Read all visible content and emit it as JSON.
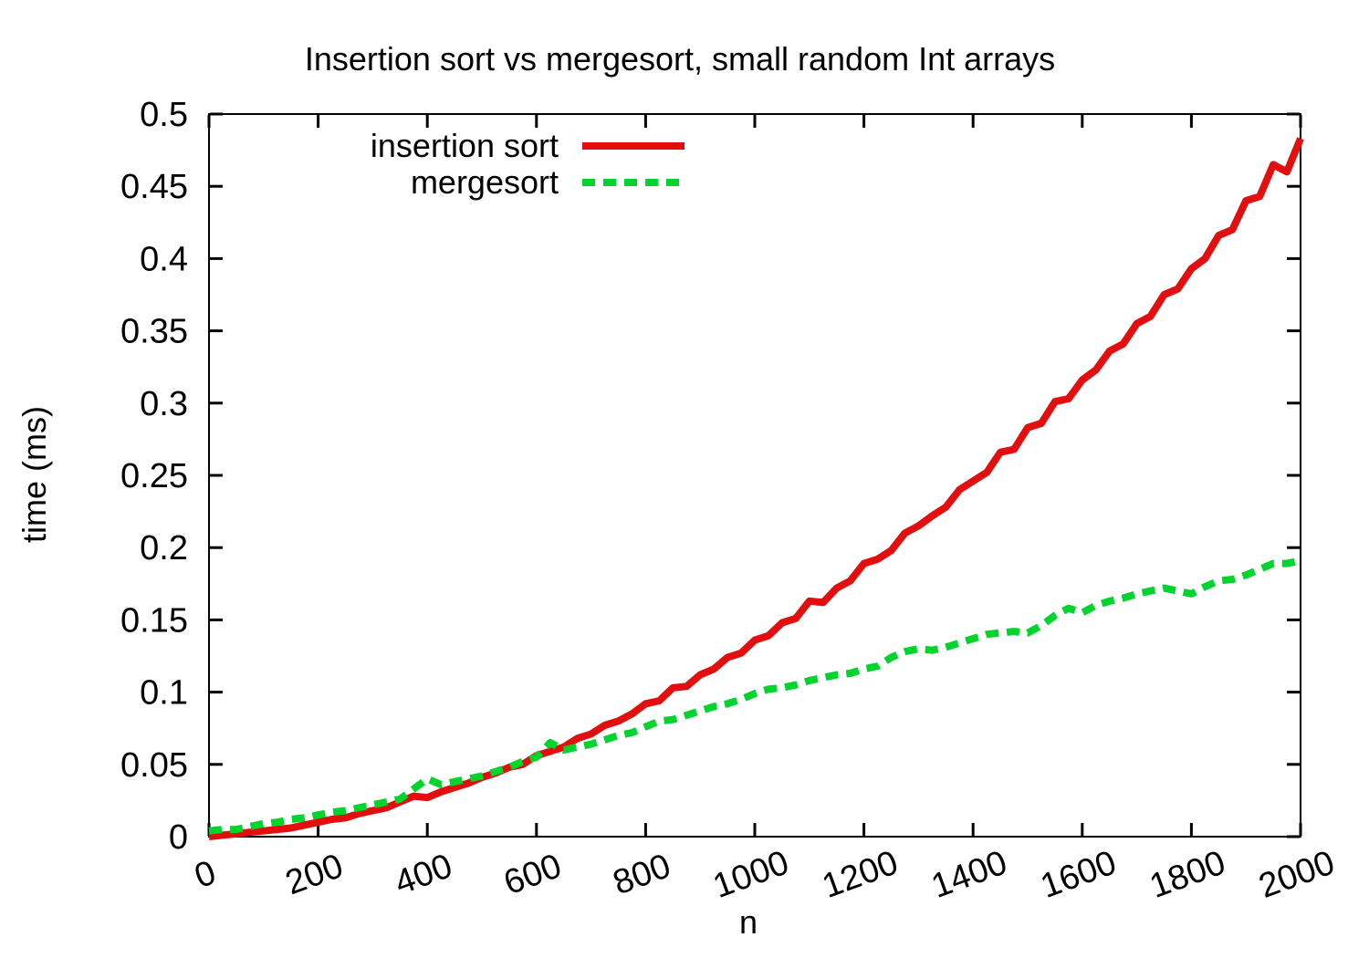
{
  "title": "Insertion sort vs mergesort, small random Int arrays",
  "colors": {
    "insertion_sort": "#e30e0e",
    "mergesort": "#00d42d",
    "axis": "#000000",
    "background": "#ffffff"
  },
  "chart_data": {
    "type": "line",
    "title": "Insertion sort vs mergesort, small random Int arrays",
    "xlabel": "n",
    "ylabel": "time (ms)",
    "xlim": [
      0,
      2000
    ],
    "ylim": [
      0,
      0.5
    ],
    "xticks": [
      0,
      200,
      400,
      600,
      800,
      1000,
      1200,
      1400,
      1600,
      1800,
      2000
    ],
    "yticks": [
      "0",
      "0.05",
      "0.1",
      "0.15",
      "0.2",
      "0.25",
      "0.3",
      "0.35",
      "0.4",
      "0.45",
      "0.5"
    ],
    "grid": false,
    "legend_position": "top-left-inside",
    "x": [
      0,
      25,
      50,
      75,
      100,
      125,
      150,
      175,
      200,
      225,
      250,
      275,
      300,
      325,
      350,
      375,
      400,
      425,
      450,
      475,
      500,
      525,
      550,
      575,
      600,
      625,
      650,
      675,
      700,
      725,
      750,
      775,
      800,
      825,
      850,
      875,
      900,
      925,
      950,
      975,
      1000,
      1025,
      1050,
      1075,
      1100,
      1125,
      1150,
      1175,
      1200,
      1225,
      1250,
      1275,
      1300,
      1325,
      1350,
      1375,
      1400,
      1425,
      1450,
      1475,
      1500,
      1525,
      1550,
      1575,
      1600,
      1625,
      1650,
      1675,
      1700,
      1725,
      1750,
      1775,
      1800,
      1825,
      1850,
      1875,
      1900,
      1925,
      1950,
      1975,
      2000
    ],
    "series": [
      {
        "name": "insertion sort",
        "color": "#e30e0e",
        "style": "solid",
        "values": [
          0.0,
          0.001,
          0.002,
          0.003,
          0.004,
          0.005,
          0.006,
          0.008,
          0.01,
          0.012,
          0.013,
          0.016,
          0.018,
          0.02,
          0.024,
          0.028,
          0.027,
          0.031,
          0.034,
          0.037,
          0.041,
          0.044,
          0.048,
          0.05,
          0.056,
          0.059,
          0.062,
          0.068,
          0.071,
          0.077,
          0.08,
          0.085,
          0.092,
          0.094,
          0.103,
          0.104,
          0.112,
          0.116,
          0.124,
          0.127,
          0.136,
          0.139,
          0.148,
          0.151,
          0.163,
          0.162,
          0.172,
          0.177,
          0.189,
          0.192,
          0.198,
          0.21,
          0.215,
          0.222,
          0.228,
          0.24,
          0.246,
          0.252,
          0.266,
          0.268,
          0.283,
          0.286,
          0.301,
          0.303,
          0.316,
          0.323,
          0.336,
          0.341,
          0.355,
          0.36,
          0.375,
          0.379,
          0.393,
          0.4,
          0.416,
          0.42,
          0.44,
          0.443,
          0.465,
          0.46,
          0.483
        ]
      },
      {
        "name": "mergesort",
        "color": "#00d42d",
        "style": "dashed",
        "values": [
          0.004,
          0.005,
          0.005,
          0.007,
          0.009,
          0.01,
          0.012,
          0.013,
          0.015,
          0.017,
          0.018,
          0.02,
          0.022,
          0.024,
          0.026,
          0.033,
          0.04,
          0.036,
          0.038,
          0.04,
          0.042,
          0.045,
          0.048,
          0.052,
          0.055,
          0.065,
          0.06,
          0.062,
          0.064,
          0.067,
          0.07,
          0.072,
          0.076,
          0.08,
          0.081,
          0.084,
          0.087,
          0.09,
          0.092,
          0.095,
          0.099,
          0.102,
          0.103,
          0.105,
          0.108,
          0.11,
          0.112,
          0.113,
          0.116,
          0.118,
          0.124,
          0.128,
          0.13,
          0.129,
          0.131,
          0.134,
          0.137,
          0.14,
          0.141,
          0.142,
          0.141,
          0.146,
          0.153,
          0.158,
          0.155,
          0.16,
          0.163,
          0.165,
          0.168,
          0.17,
          0.172,
          0.17,
          0.168,
          0.173,
          0.177,
          0.178,
          0.181,
          0.185,
          0.189,
          0.189,
          0.191
        ]
      }
    ]
  }
}
